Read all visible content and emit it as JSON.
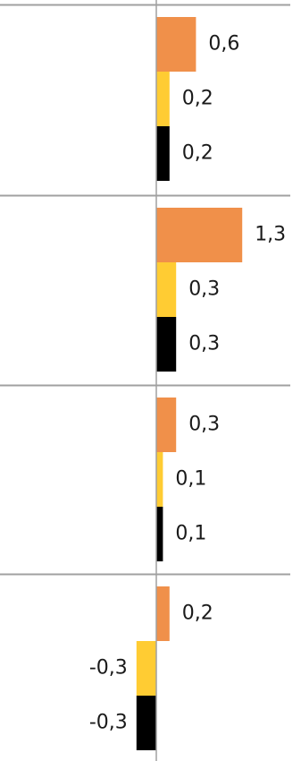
{
  "chart_data": {
    "type": "bar",
    "orientation": "horizontal",
    "decimal_separator": ",",
    "colors": [
      "#F0904A",
      "#FFCC33",
      "#000000"
    ],
    "groups": [
      {
        "values": [
          0.6,
          0.2,
          0.2
        ],
        "labels": [
          "0,6",
          "0,2",
          "0,2"
        ]
      },
      {
        "values": [
          1.3,
          0.3,
          0.3
        ],
        "labels": [
          "1,3",
          "0,3",
          "0,3"
        ]
      },
      {
        "values": [
          0.3,
          0.1,
          0.1
        ],
        "labels": [
          "0,3",
          "0,1",
          "0,1"
        ]
      },
      {
        "values": [
          0.2,
          -0.3,
          -0.3
        ],
        "labels": [
          "0,2",
          "-0,3",
          "-0,3"
        ]
      }
    ],
    "xlabel": "",
    "ylabel": "",
    "grid": true,
    "legend": "none"
  }
}
